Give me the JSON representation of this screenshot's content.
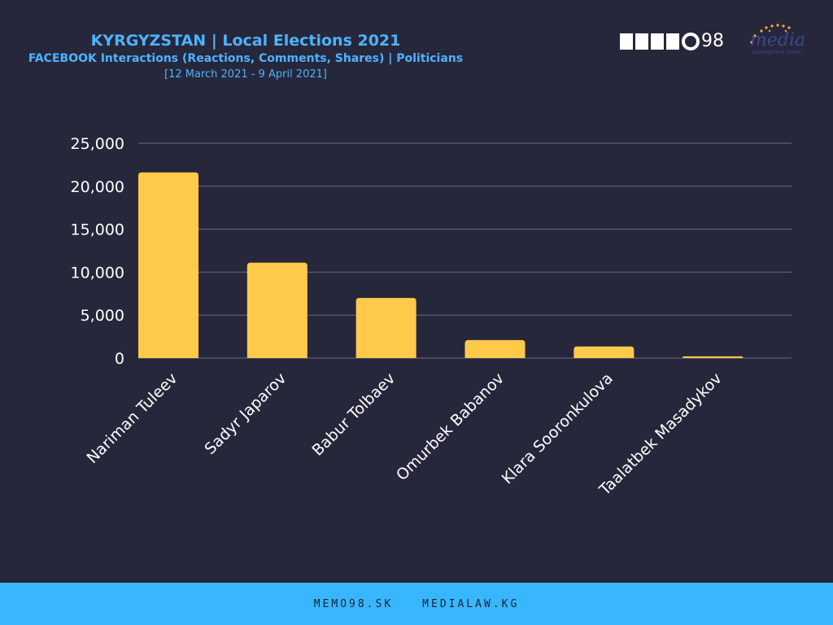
{
  "header": {
    "title": "KYRGYZSTAN | Local Elections 2021",
    "subtitle": "FACEBOOK Interactions (Reactions, Comments, Shares) | Politicians",
    "daterange": "[12 March 2021 - 9 April 2021]"
  },
  "logos": {
    "memo_number": "98",
    "media_text": "media",
    "media_sub": "development center"
  },
  "footer": {
    "link1": "MEMO98.SK",
    "link2": "MEDIALAW.KG"
  },
  "colors": {
    "background": "#26273b",
    "bar": "#ffca4a",
    "title": "#4db3ff",
    "footer_bg": "#38b6ff",
    "grid": "#6a6b80"
  },
  "chart_data": {
    "type": "bar",
    "categories": [
      "Nariman Tuleev",
      "Sadyr Japarov",
      "Babur Tolbaev",
      "Omurbek Babanov",
      "Klara Sooronkulova",
      "Taalatbek Masadykov"
    ],
    "values": [
      21600,
      11100,
      7000,
      2100,
      1350,
      200
    ],
    "ylim": [
      0,
      25000
    ],
    "yticks": [
      "0",
      "5,000",
      "10,000",
      "15,000",
      "20,000",
      "25,000"
    ],
    "ytick_values": [
      0,
      5000,
      10000,
      15000,
      20000,
      25000
    ],
    "grid": true,
    "xlabel": "",
    "ylabel": ""
  }
}
